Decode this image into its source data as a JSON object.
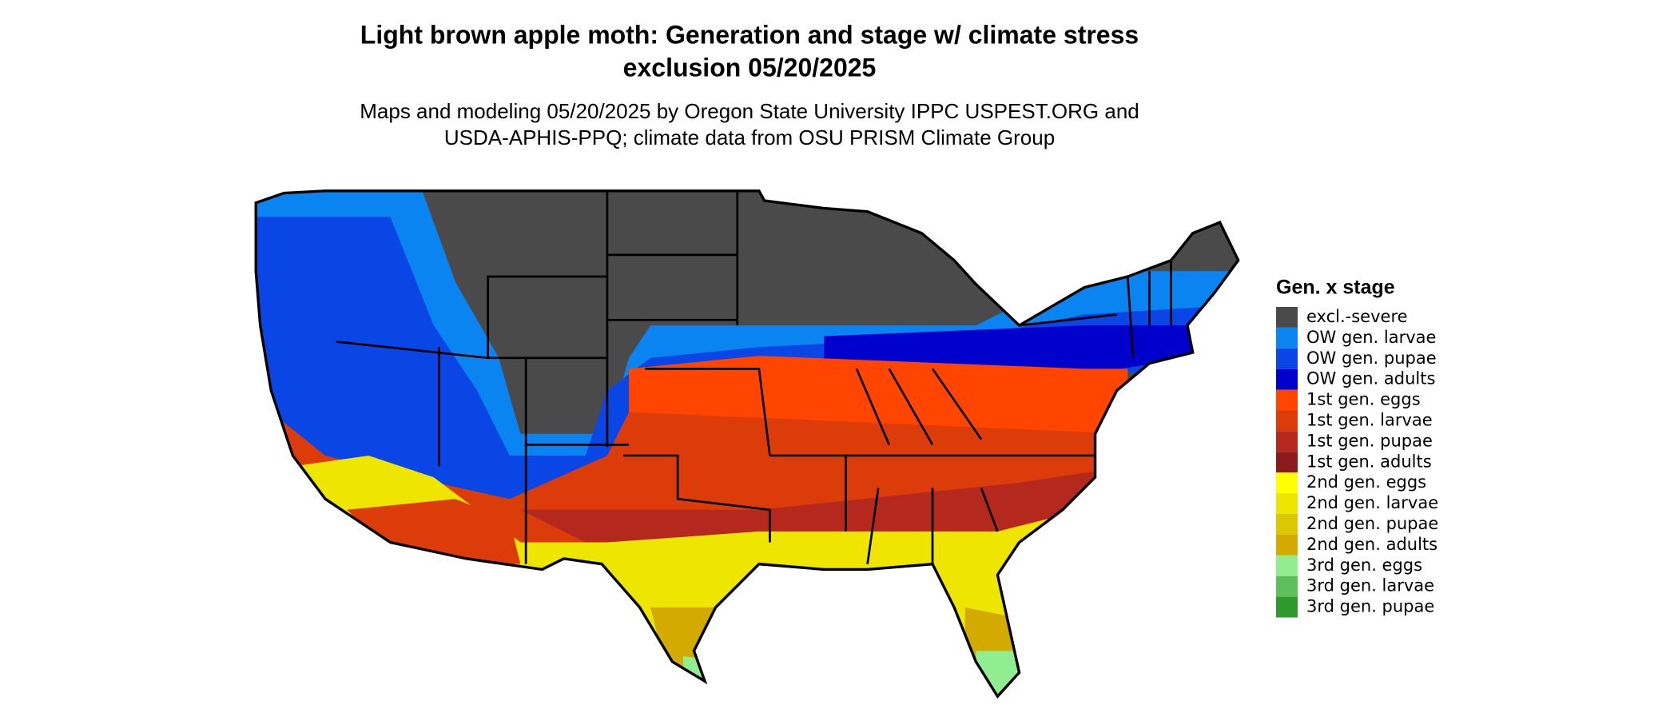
{
  "header": {
    "title_lines": [
      "Light brown apple moth: Generation and stage w/ climate stress",
      "exclusion 05/20/2025"
    ],
    "subtitle_lines": [
      "Maps and modeling 05/20/2025 by Oregon State University IPPC USPEST.ORG and",
      "USDA-APHIS-PPQ; climate data from OSU PRISM Climate Group"
    ]
  },
  "legend": {
    "title": "Gen. x stage",
    "items": [
      {
        "label": "excl.-severe",
        "color": "#4a4a4a"
      },
      {
        "label": "OW gen. larvae",
        "color": "#0a84f0"
      },
      {
        "label": "OW gen. pupae",
        "color": "#0a46e6"
      },
      {
        "label": "OW gen. adults",
        "color": "#0000cc"
      },
      {
        "label": "1st gen. eggs",
        "color": "#ff4500"
      },
      {
        "label": "1st gen. larvae",
        "color": "#dc3c0a"
      },
      {
        "label": "1st gen. pupae",
        "color": "#b4281e"
      },
      {
        "label": "1st gen. adults",
        "color": "#8c1a1a"
      },
      {
        "label": "2nd gen. eggs",
        "color": "#ffff00"
      },
      {
        "label": "2nd gen. larvae",
        "color": "#eee600"
      },
      {
        "label": "2nd gen. pupae",
        "color": "#dcc800"
      },
      {
        "label": "2nd gen. adults",
        "color": "#d2aa00"
      },
      {
        "label": "3rd gen. eggs",
        "color": "#90ee90"
      },
      {
        "label": "3rd gen. larvae",
        "color": "#5cbf5c"
      },
      {
        "label": "3rd gen. pupae",
        "color": "#2e9a2e"
      }
    ]
  }
}
